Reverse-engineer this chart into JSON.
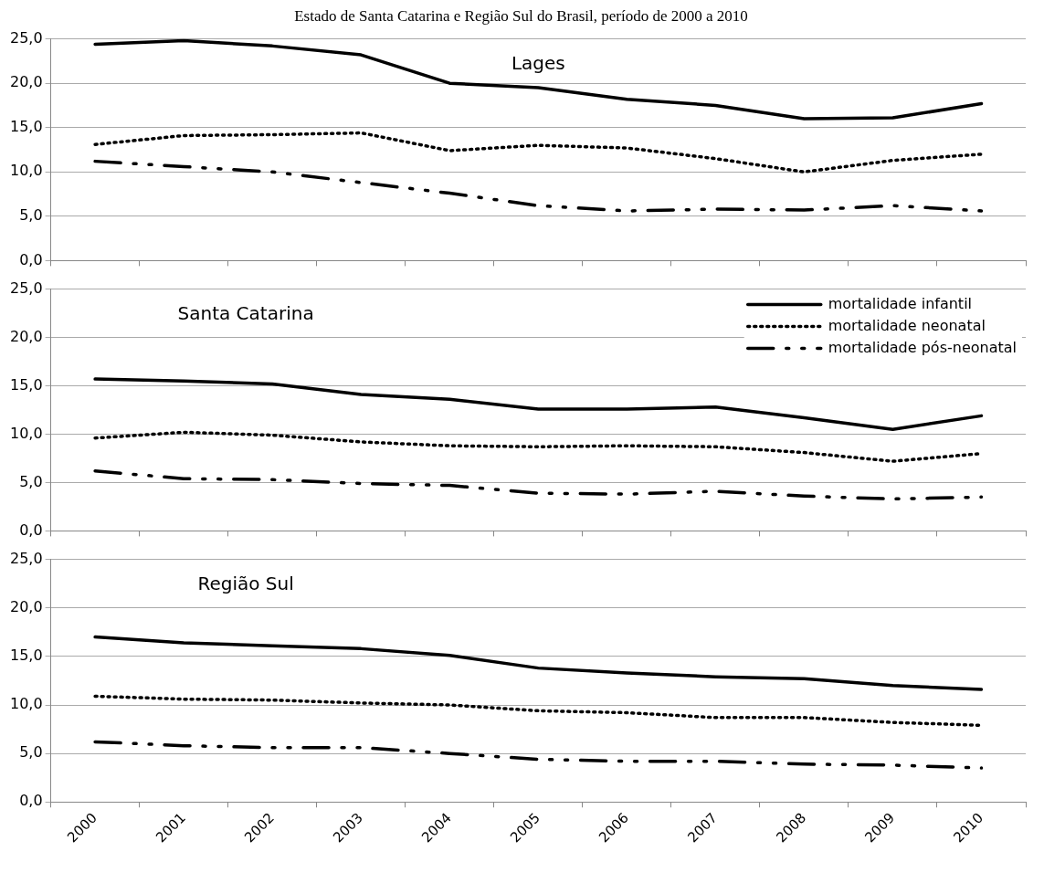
{
  "chart_data": [
    {
      "type": "line",
      "title": "Lages",
      "annotations": [
        "Estado de Santa Catarina e Região Sul do Brasil, período de 2000 a 2010"
      ],
      "categories": [
        "2000",
        "2001",
        "2002",
        "2003",
        "2004",
        "2005",
        "2006",
        "2007",
        "2008",
        "2009",
        "2010"
      ],
      "series": [
        {
          "color": "#000000",
          "line_style": "solid",
          "values": [
            24.4,
            24.8,
            24.2,
            23.2,
            20.0,
            19.5,
            18.2,
            17.5,
            16.0,
            16.1,
            17.7
          ]
        },
        {
          "color": "#000000",
          "line_style": "dotted",
          "values": [
            13.1,
            14.1,
            14.2,
            14.4,
            12.4,
            13.0,
            12.7,
            11.5,
            10.0,
            11.3,
            12.0
          ]
        },
        {
          "color": "#000000",
          "line_style": "dashed",
          "values": [
            11.2,
            10.6,
            10.0,
            8.8,
            7.6,
            6.2,
            5.6,
            5.8,
            5.7,
            6.2,
            5.6
          ]
        }
      ],
      "ylim": [
        0,
        25
      ],
      "yticks": [
        {
          "value": 0,
          "label": "0,0"
        },
        {
          "value": 5,
          "label": "5,0"
        },
        {
          "value": 10,
          "label": "10,0"
        },
        {
          "value": 15,
          "label": "15,0"
        },
        {
          "value": 20,
          "label": "20,0"
        },
        {
          "value": 25,
          "label": "25,0"
        }
      ],
      "grid": "y",
      "legend": false,
      "tick_labels": "y",
      "marker": "none"
    },
    {
      "type": "line",
      "title": "Santa Catarina",
      "categories": [
        "2000",
        "2001",
        "2002",
        "2003",
        "2004",
        "2005",
        "2006",
        "2007",
        "2008",
        "2009",
        "2010"
      ],
      "series": [
        {
          "name": "mortalidade infantil",
          "color": "#000000",
          "line_style": "solid",
          "values": [
            15.7,
            15.5,
            15.2,
            14.1,
            13.6,
            12.6,
            12.6,
            12.8,
            11.7,
            10.5,
            11.9
          ]
        },
        {
          "name": "mortalidade neonatal",
          "color": "#000000",
          "line_style": "dotted",
          "values": [
            9.6,
            10.2,
            9.9,
            9.2,
            8.8,
            8.7,
            8.8,
            8.7,
            8.1,
            7.2,
            8.0
          ]
        },
        {
          "name": "mortalidade pós-neonatal",
          "color": "#000000",
          "line_style": "dashed",
          "values": [
            6.2,
            5.4,
            5.3,
            4.9,
            4.7,
            3.9,
            3.8,
            4.1,
            3.6,
            3.3,
            3.5
          ]
        }
      ],
      "ylim": [
        0,
        25
      ],
      "yticks": [
        {
          "value": 0,
          "label": "0,0"
        },
        {
          "value": 5,
          "label": "5,0"
        },
        {
          "value": 10,
          "label": "10,0"
        },
        {
          "value": 15,
          "label": "15,0"
        },
        {
          "value": 20,
          "label": "20,0"
        },
        {
          "value": 25,
          "label": "25,0"
        }
      ],
      "grid": "y",
      "legend": "top right",
      "tick_labels": "y",
      "marker": "none"
    },
    {
      "type": "line",
      "title": "Região Sul",
      "categories": [
        "2000",
        "2001",
        "2002",
        "2003",
        "2004",
        "2005",
        "2006",
        "2007",
        "2008",
        "2009",
        "2010"
      ],
      "series": [
        {
          "color": "#000000",
          "line_style": "solid",
          "values": [
            17.0,
            16.4,
            16.1,
            15.8,
            15.1,
            13.8,
            13.3,
            12.9,
            12.7,
            12.0,
            11.6
          ]
        },
        {
          "color": "#000000",
          "line_style": "dotted",
          "values": [
            10.9,
            10.6,
            10.5,
            10.2,
            10.0,
            9.4,
            9.2,
            8.7,
            8.7,
            8.2,
            7.9
          ]
        },
        {
          "color": "#000000",
          "line_style": "dashed",
          "values": [
            6.2,
            5.8,
            5.6,
            5.6,
            5.0,
            4.4,
            4.2,
            4.2,
            3.9,
            3.8,
            3.5
          ]
        }
      ],
      "ylim": [
        0,
        25
      ],
      "yticks": [
        {
          "value": 0,
          "label": "0,0"
        },
        {
          "value": 5,
          "label": "5,0"
        },
        {
          "value": 10,
          "label": "10,0"
        },
        {
          "value": 15,
          "label": "15,0"
        },
        {
          "value": 20,
          "label": "20,0"
        },
        {
          "value": 25,
          "label": "25,0"
        }
      ],
      "grid": "y",
      "marker": "none"
    }
  ]
}
